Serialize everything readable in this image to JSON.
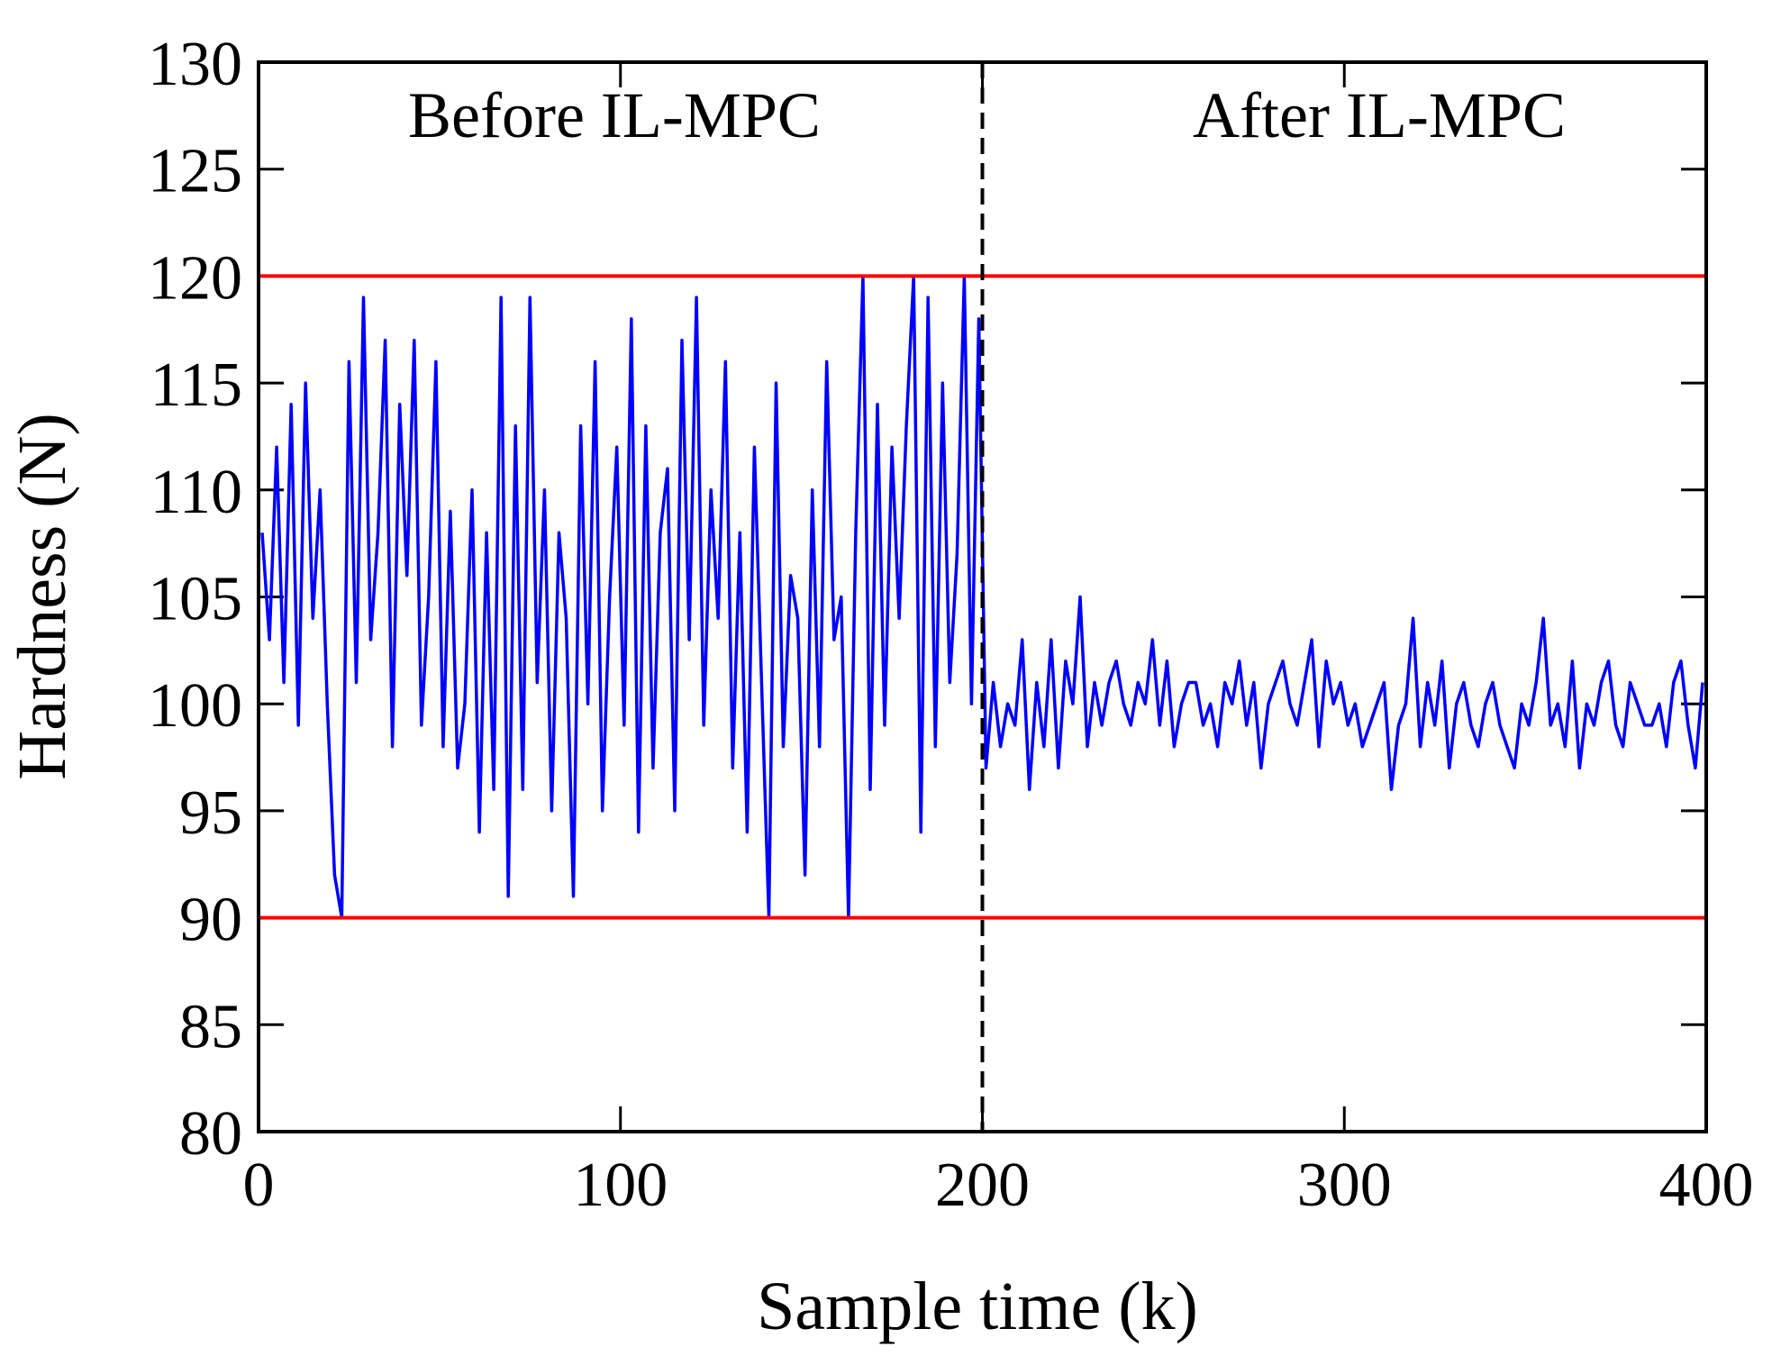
{
  "chart_data": {
    "type": "line",
    "xlabel": "Sample time (k)",
    "ylabel": "Hardness (N)",
    "annotations": [
      "Before IL-MPC",
      "After IL-MPC"
    ],
    "xlim": [
      0,
      400
    ],
    "xticks": [
      0,
      100,
      200,
      300,
      400
    ],
    "ylim": [
      80,
      130
    ],
    "yticks": [
      80,
      85,
      90,
      95,
      100,
      105,
      110,
      115,
      120,
      125,
      130
    ],
    "hlines": [
      {
        "value": 120,
        "color": "#ff0000"
      },
      {
        "value": 90,
        "color": "#ff0000"
      }
    ],
    "vlines": [
      {
        "value": 200,
        "color": "#000000",
        "style": "dashed"
      }
    ],
    "x": [
      1,
      3,
      5,
      7,
      9,
      11,
      13,
      15,
      17,
      19,
      21,
      23,
      25,
      27,
      29,
      31,
      33,
      35,
      37,
      39,
      41,
      43,
      45,
      47,
      49,
      51,
      53,
      55,
      57,
      59,
      61,
      63,
      65,
      67,
      69,
      71,
      73,
      75,
      77,
      79,
      81,
      83,
      85,
      87,
      89,
      91,
      93,
      95,
      97,
      99,
      101,
      103,
      105,
      107,
      109,
      111,
      113,
      115,
      117,
      119,
      121,
      123,
      125,
      127,
      129,
      131,
      133,
      135,
      137,
      139,
      141,
      143,
      145,
      147,
      149,
      151,
      153,
      155,
      157,
      159,
      161,
      163,
      165,
      167,
      169,
      171,
      173,
      175,
      177,
      179,
      181,
      183,
      185,
      187,
      189,
      191,
      193,
      195,
      197,
      199,
      201,
      203,
      205,
      207,
      209,
      211,
      213,
      215,
      217,
      219,
      221,
      223,
      225,
      227,
      229,
      231,
      233,
      235,
      237,
      239,
      241,
      243,
      245,
      247,
      249,
      251,
      253,
      255,
      257,
      259,
      261,
      263,
      265,
      267,
      269,
      271,
      273,
      275,
      277,
      279,
      281,
      283,
      285,
      287,
      289,
      291,
      293,
      295,
      297,
      299,
      301,
      303,
      305,
      307,
      309,
      311,
      313,
      315,
      317,
      319,
      321,
      323,
      325,
      327,
      329,
      331,
      333,
      335,
      337,
      339,
      341,
      343,
      345,
      347,
      349,
      351,
      353,
      355,
      357,
      359,
      361,
      363,
      365,
      367,
      369,
      371,
      373,
      375,
      377,
      379,
      381,
      383,
      385,
      387,
      389,
      391,
      393,
      395,
      397,
      399
    ],
    "series": [
      {
        "name": "Hardness",
        "color": "#0000ff",
        "values": [
          108,
          103,
          112,
          101,
          114,
          99,
          115,
          104,
          110,
          100,
          92,
          90,
          116,
          101,
          119,
          103,
          108,
          117,
          98,
          114,
          106,
          117,
          99,
          105,
          116,
          98,
          109,
          97,
          100,
          110,
          94,
          108,
          96,
          119,
          91,
          113,
          96,
          119,
          101,
          110,
          95,
          108,
          104,
          91,
          113,
          100,
          116,
          95,
          105,
          112,
          99,
          118,
          94,
          113,
          97,
          108,
          111,
          95,
          117,
          103,
          119,
          99,
          110,
          104,
          116,
          97,
          108,
          94,
          112,
          101,
          90,
          115,
          98,
          106,
          104,
          92,
          110,
          98,
          116,
          103,
          105,
          90,
          108,
          120,
          96,
          114,
          99,
          112,
          104,
          113,
          120,
          94,
          119,
          98,
          115,
          101,
          107,
          120,
          100,
          118,
          97,
          101,
          98,
          100,
          99,
          103,
          96,
          101,
          98,
          103,
          97,
          102,
          100,
          105,
          98,
          101,
          99,
          101,
          102,
          100,
          99,
          101,
          100,
          103,
          99,
          102,
          98,
          100,
          101,
          101,
          99,
          100,
          98,
          101,
          100,
          102,
          99,
          101,
          97,
          100,
          101,
          102,
          100,
          99,
          101,
          103,
          98,
          102,
          100,
          101,
          99,
          100,
          98,
          99,
          100,
          101,
          96,
          99,
          100,
          104,
          98,
          101,
          99,
          102,
          97,
          100,
          101,
          99,
          98,
          100,
          101,
          99,
          98,
          97,
          100,
          99,
          101,
          104,
          99,
          100,
          98,
          102,
          97,
          100,
          99,
          101,
          102,
          99,
          98,
          101,
          100,
          99,
          99,
          100,
          98,
          101,
          102,
          99,
          97,
          101
        ]
      }
    ]
  }
}
